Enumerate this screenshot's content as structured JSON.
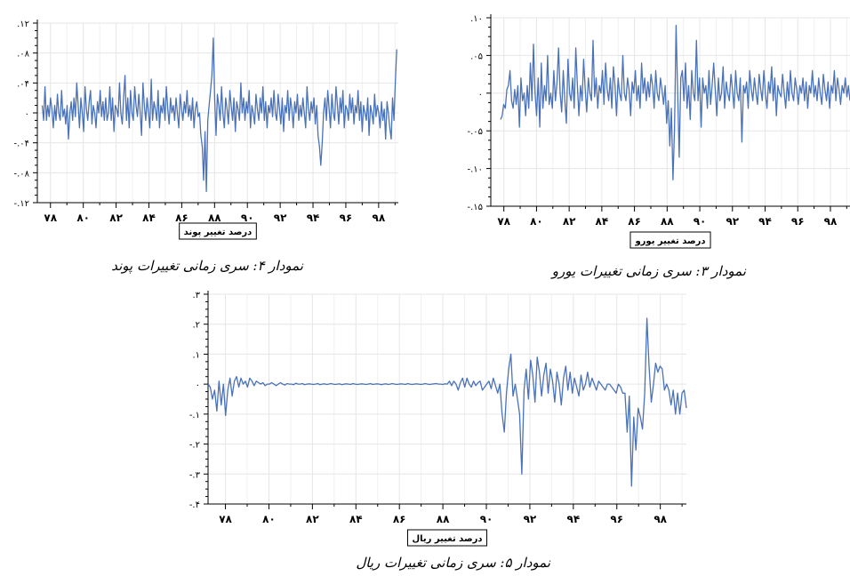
{
  "chart_data": [
    {
      "type": "line",
      "id": "pound",
      "legend": "درصد تغییر پوند",
      "caption": "نمودار ۴: سری زمانی تغییرات پوند",
      "ylim": [
        -0.12,
        0.12
      ],
      "yticks": [
        0.12,
        0.08,
        0.04,
        0,
        -0.04,
        -0.08,
        -0.12
      ],
      "ytick_labels": [
        ".۱۲",
        ".۰۸",
        ".۰۴",
        "۰",
        "-.۰۴",
        "-.۰۸",
        "-.۱۲"
      ],
      "xlim": [
        77.2,
        99.2
      ],
      "xticks": [
        78,
        80,
        82,
        84,
        86,
        88,
        90,
        92,
        94,
        96,
        98
      ],
      "xtick_labels": [
        "۷۸",
        "۸۰",
        "۸۲",
        "۸۴",
        "۸۶",
        "۸۸",
        "۹۰",
        "۹۲",
        "۹۴",
        "۹۶",
        "۹۸"
      ],
      "grid": true,
      "legend_position": "bottom",
      "series": [
        {
          "color": "#4a72b8",
          "x_start": 77.5,
          "x_end": 99.1,
          "values": [
            0.01,
            -0.01,
            0.035,
            -0.01,
            0.01,
            -0.005,
            0.02,
            0.005,
            -0.02,
            0.01,
            -0.01,
            0.025,
            0.0,
            -0.01,
            0.03,
            -0.005,
            0.005,
            -0.015,
            0.01,
            -0.035,
            0.0,
            0.015,
            -0.01,
            0.02,
            -0.005,
            0.04,
            0.01,
            -0.02,
            0.02,
            0.0,
            -0.025,
            0.035,
            0.005,
            -0.01,
            0.015,
            0.03,
            -0.015,
            0.01,
            0.0,
            -0.02,
            0.015,
            0.0,
            0.03,
            -0.005,
            0.015,
            -0.01,
            0.02,
            -0.01,
            0.0,
            0.035,
            -0.01,
            0.02,
            -0.025,
            0.01,
            0.005,
            -0.005,
            0.04,
            0.0,
            -0.015,
            0.02,
            0.05,
            -0.01,
            0.02,
            -0.02,
            0.03,
            0.0,
            -0.01,
            0.035,
            0.01,
            -0.005,
            0.025,
            0.0,
            -0.03,
            0.04,
            0.01,
            -0.01,
            0.02,
            0.0,
            -0.02,
            0.045,
            -0.01,
            0.015,
            0.005,
            -0.01,
            0.03,
            -0.02,
            0.01,
            0.0,
            0.02,
            -0.01,
            0.035,
            0.005,
            -0.015,
            0.02,
            0.0,
            0.01,
            -0.01,
            0.02,
            0.0,
            -0.02,
            0.025,
            0.005,
            -0.01,
            0.015,
            0.0,
            0.03,
            -0.005,
            0.01,
            -0.01,
            0.02,
            -0.02,
            0.005,
            0.015,
            -0.005,
            0.0,
            -0.03,
            -0.045,
            -0.09,
            -0.025,
            -0.105,
            -0.01,
            0.01,
            0.03,
            0.05,
            0.1,
            0.02,
            -0.03,
            0.025,
            0.01,
            -0.01,
            0.035,
            0.0,
            -0.02,
            0.02,
            0.005,
            -0.015,
            0.03,
            0.01,
            -0.01,
            0.02,
            -0.025,
            0.015,
            0.005,
            -0.01,
            0.04,
            0.0,
            0.02,
            -0.01,
            0.015,
            0.0,
            0.03,
            -0.02,
            0.01,
            0.0,
            -0.015,
            0.025,
            0.005,
            -0.01,
            0.02,
            0.0,
            0.035,
            -0.01,
            0.015,
            -0.02,
            0.01,
            0.0,
            0.02,
            -0.005,
            0.03,
            0.0,
            -0.01,
            0.025,
            0.005,
            -0.015,
            0.02,
            -0.025,
            0.01,
            0.0,
            0.03,
            -0.01,
            0.02,
            0.005,
            -0.02,
            0.015,
            0.0,
            0.025,
            -0.01,
            0.01,
            -0.005,
            0.02,
            0.0,
            -0.02,
            0.035,
            0.005,
            -0.01,
            0.015,
            0.0,
            0.02,
            -0.015,
            0.01,
            -0.03,
            -0.045,
            -0.07,
            -0.04,
            0.0,
            0.02,
            -0.01,
            0.03,
            0.005,
            -0.02,
            0.025,
            0.0,
            -0.01,
            0.035,
            0.01,
            -0.015,
            0.02,
            0.0,
            0.03,
            -0.02,
            0.01,
            0.005,
            -0.01,
            0.025,
            0.0,
            0.02,
            -0.015,
            0.01,
            0.0,
            0.03,
            -0.01,
            0.015,
            -0.025,
            0.01,
            0.0,
            -0.01,
            0.02,
            -0.03,
            0.01,
            0.0,
            -0.015,
            0.025,
            -0.005,
            0.01,
            0.0,
            -0.02,
            0.015,
            -0.01,
            0.005,
            -0.035,
            0.015,
            0.0,
            -0.02,
            -0.035,
            0.02,
            -0.01,
            0.04,
            0.085
          ]
        }
      ]
    },
    {
      "type": "line",
      "id": "euro",
      "legend": "درصد تغییر یورو",
      "caption": "نمودار ۳: سری زمانی تغییرات یورو",
      "ylim": [
        -0.15,
        0.1
      ],
      "yticks": [
        0.1,
        0.05,
        0,
        -0.05,
        -0.1,
        -0.15
      ],
      "ytick_labels": [
        ".۱۰",
        ".۰۵",
        "۰",
        "-.۰۵",
        "-.۱۰",
        "-.۱۵"
      ],
      "xlim": [
        77.2,
        99.2
      ],
      "xticks": [
        78,
        80,
        82,
        84,
        86,
        88,
        90,
        92,
        94,
        96,
        98
      ],
      "xtick_labels": [
        "۷۸",
        "۸۰",
        "۸۲",
        "۸۴",
        "۸۶",
        "۸۸",
        "۹۰",
        "۹۲",
        "۹۴",
        "۹۶",
        "۹۸"
      ],
      "grid": true,
      "legend_position": "bottom",
      "series": [
        {
          "color": "#4a72b8",
          "x_start": 77.8,
          "x_end": 99.2,
          "values": [
            -0.035,
            -0.03,
            -0.015,
            -0.02,
            0.005,
            0.01,
            0.03,
            -0.01,
            -0.02,
            0.005,
            -0.015,
            0.01,
            -0.045,
            0.02,
            -0.01,
            0.0,
            -0.03,
            0.01,
            -0.02,
            0.04,
            -0.01,
            0.065,
            0.0,
            -0.03,
            0.02,
            -0.045,
            0.04,
            -0.02,
            0.01,
            -0.01,
            0.05,
            -0.015,
            0.0,
            -0.02,
            0.03,
            -0.01,
            0.015,
            0.06,
            0.0,
            -0.025,
            0.03,
            -0.01,
            -0.04,
            0.045,
            0.0,
            -0.01,
            0.02,
            -0.02,
            0.06,
            0.01,
            -0.03,
            0.01,
            -0.01,
            0.045,
            0.005,
            -0.025,
            0.02,
            0.0,
            -0.01,
            0.07,
            -0.005,
            0.02,
            -0.02,
            0.01,
            0.0,
            0.03,
            -0.015,
            0.04,
            0.005,
            -0.01,
            0.02,
            -0.02,
            0.035,
            0.01,
            -0.03,
            0.02,
            0.0,
            -0.01,
            0.05,
            0.0,
            -0.01,
            0.02,
            0.005,
            -0.03,
            0.015,
            0.0,
            0.03,
            -0.01,
            0.01,
            -0.02,
            0.04,
            0.0,
            0.02,
            -0.01,
            0.015,
            -0.005,
            0.025,
            0.01,
            -0.02,
            0.03,
            0.0,
            -0.01,
            0.02,
            0.005,
            -0.015,
            0.01,
            -0.04,
            -0.01,
            -0.07,
            -0.02,
            -0.115,
            -0.05,
            0.09,
            0.0,
            -0.085,
            0.02,
            0.03,
            -0.01,
            0.04,
            -0.02,
            0.01,
            -0.035,
            0.03,
            0.0,
            -0.01,
            0.07,
            -0.01,
            0.02,
            -0.045,
            0.02,
            0.0,
            0.01,
            -0.02,
            0.03,
            -0.015,
            0.01,
            0.04,
            0.005,
            -0.03,
            0.02,
            -0.01,
            0.0,
            0.035,
            -0.02,
            0.015,
            0.0,
            -0.01,
            0.025,
            0.005,
            -0.02,
            0.03,
            0.0,
            -0.01,
            0.02,
            -0.065,
            0.01,
            0.0,
            0.015,
            -0.02,
            0.03,
            0.005,
            -0.01,
            0.02,
            0.0,
            -0.015,
            0.025,
            0.005,
            -0.01,
            0.03,
            0.0,
            -0.02,
            0.015,
            0.0,
            0.035,
            -0.01,
            0.02,
            -0.03,
            0.01,
            0.0,
            -0.005,
            0.025,
            0.0,
            -0.02,
            0.015,
            -0.01,
            0.03,
            0.0,
            -0.01,
            0.02,
            0.005,
            -0.015,
            0.01,
            0.0,
            0.02,
            -0.01,
            0.015,
            -0.02,
            0.01,
            0.0,
            0.03,
            -0.005,
            0.01,
            -0.01,
            0.02,
            0.0,
            -0.015,
            0.025,
            0.005,
            -0.01,
            0.015,
            -0.02,
            0.01,
            0.0,
            0.03,
            -0.01,
            0.02,
            0.005,
            -0.015,
            0.01,
            0.0,
            0.02,
            -0.005,
            0.01,
            -0.01
          ]
        }
      ]
    },
    {
      "type": "line",
      "id": "rial",
      "legend": "درصد تغییر ریال",
      "caption": "نمودار ۵: سری زمانی تغییرات ریال",
      "ylim": [
        -0.4,
        0.3
      ],
      "yticks": [
        0.3,
        0.2,
        0.1,
        0,
        -0.1,
        -0.2,
        -0.3,
        -0.4
      ],
      "ytick_labels": [
        ".۳",
        ".۲",
        ".۱",
        "۰",
        "-.۱",
        "-.۲",
        "-.۳",
        "-.۴"
      ],
      "xlim": [
        77.2,
        99.2
      ],
      "xticks": [
        78,
        80,
        82,
        84,
        86,
        88,
        90,
        92,
        94,
        96,
        98
      ],
      "xtick_labels": [
        "۷۸",
        "۸۰",
        "۸۲",
        "۸۴",
        "۸۶",
        "۸۸",
        "۹۰",
        "۹۲",
        "۹۴",
        "۹۶",
        "۹۸"
      ],
      "grid": true,
      "legend_position": "bottom",
      "series": [
        {
          "color": "#4a72b8",
          "x_start": 77.2,
          "x_end": 99.2,
          "values": [
            0.0,
            -0.01,
            -0.05,
            -0.02,
            -0.09,
            0.01,
            -0.07,
            0.0,
            -0.105,
            -0.02,
            0.02,
            -0.04,
            0.01,
            0.025,
            -0.01,
            0.02,
            0.0,
            0.01,
            -0.01,
            0.02,
            0.01,
            -0.005,
            0.01,
            0.005,
            0.0,
            0.005,
            -0.005,
            0.0,
            0.0,
            0.005,
            0.0,
            -0.005,
            0.0,
            0.005,
            0.0,
            -0.003,
            0.002,
            0.0,
            0.0,
            -0.002,
            0.003,
            0.0,
            0.0,
            0.002,
            -0.002,
            0.0,
            0.001,
            0.0,
            -0.001,
            0.0,
            0.002,
            -0.002,
            0.0,
            0.001,
            -0.001,
            0.0,
            0.002,
            0.0,
            -0.001,
            0.0,
            0.001,
            -0.002,
            0.0,
            0.001,
            0.0,
            -0.001,
            0.002,
            0.0,
            -0.001,
            0.0,
            0.001,
            0.0,
            -0.001,
            0.0,
            0.002,
            -0.001,
            0.0,
            0.001,
            0.0,
            -0.002,
            0.0,
            0.001,
            -0.001,
            0.0,
            0.002,
            0.0,
            -0.001,
            0.0,
            0.001,
            0.0,
            -0.001,
            0.002,
            0.0,
            -0.001,
            0.0,
            0.001,
            0.0,
            -0.001,
            0.0,
            0.002,
            0.0,
            -0.001,
            0.0,
            0.001,
            0.002,
            0.0,
            0.0,
            -0.001,
            0.001,
            0.0,
            0.01,
            -0.005,
            0.01,
            0.0,
            -0.02,
            0.005,
            0.02,
            -0.01,
            0.02,
            0.0,
            -0.01,
            0.01,
            -0.005,
            0.005,
            0.01,
            -0.02,
            -0.01,
            0.0,
            0.01,
            -0.015,
            0.02,
            -0.005,
            -0.03,
            0.0,
            -0.1,
            -0.16,
            -0.03,
            0.05,
            0.1,
            -0.04,
            0.0,
            -0.05,
            -0.1,
            -0.3,
            -0.02,
            0.05,
            -0.05,
            0.08,
            0.03,
            -0.06,
            0.09,
            0.04,
            -0.04,
            0.03,
            0.07,
            -0.03,
            0.05,
            0.01,
            -0.06,
            0.04,
            0.0,
            -0.07,
            0.02,
            0.06,
            -0.02,
            0.04,
            -0.03,
            0.02,
            -0.01,
            -0.04,
            0.03,
            -0.02,
            0.0,
            0.04,
            -0.01,
            0.02,
            0.0,
            -0.02,
            0.01,
            0.0,
            -0.01,
            -0.02,
            0.0,
            0.0,
            -0.01,
            -0.02,
            -0.03,
            0.0,
            -0.01,
            -0.03,
            -0.03,
            -0.16,
            -0.04,
            -0.34,
            -0.11,
            -0.22,
            -0.08,
            -0.11,
            -0.15,
            -0.03,
            0.22,
            0.06,
            -0.06,
            0.0,
            0.07,
            0.04,
            0.06,
            0.05,
            -0.02,
            0.0,
            -0.02,
            -0.07,
            -0.02,
            -0.1,
            -0.03,
            -0.1,
            -0.03,
            -0.02,
            -0.08
          ]
        }
      ]
    }
  ]
}
